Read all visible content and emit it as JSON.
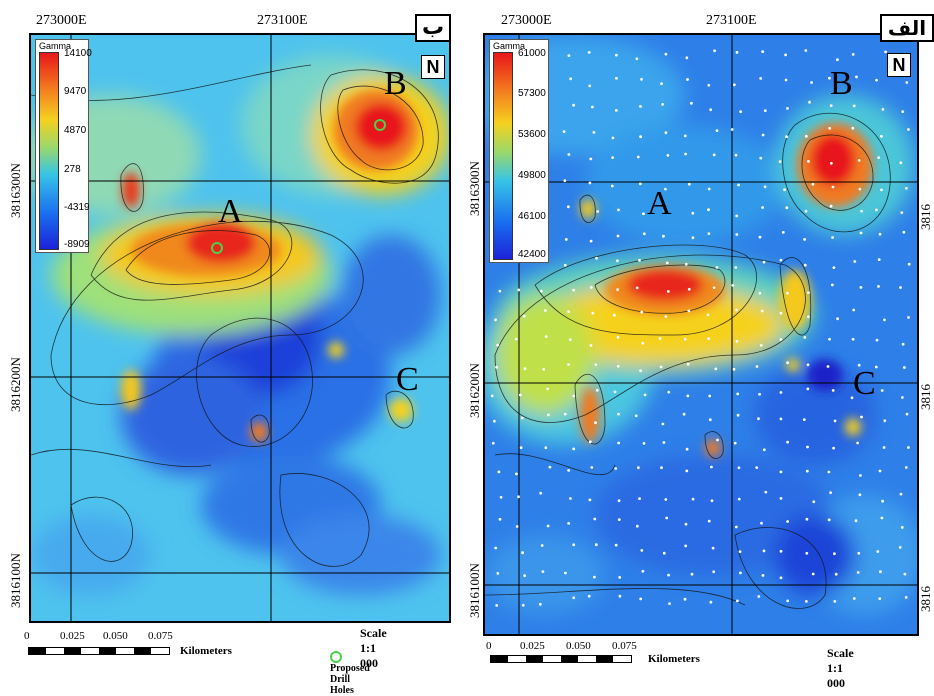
{
  "left": {
    "panel_letter": "ب",
    "top_coords": [
      "273000E",
      "273100E"
    ],
    "side_coords": [
      "3816300N",
      "3816200N",
      "3816100N"
    ],
    "legend": {
      "title": "Gamma",
      "ticks": [
        "14100",
        "9470",
        "4870",
        "278",
        "-4319",
        "-8909"
      ]
    },
    "zones": [
      "A",
      "B",
      "C"
    ],
    "scale_numbers": [
      "0",
      "0.025",
      "0.050",
      "0.075"
    ],
    "scale_unit": "Kilometers",
    "scale_text": "Scale 1:1 000",
    "drill_legend": "Proposed Drill Holes"
  },
  "right": {
    "panel_letter": "الف",
    "top_coords": [
      "273000E",
      "273100E"
    ],
    "side_coords": [
      "3816300N",
      "3816200N",
      "3816100N"
    ],
    "legend": {
      "title": "Gamma",
      "ticks": [
        "61000",
        "57300",
        "53600",
        "49800",
        "46100",
        "42400"
      ]
    },
    "zones": [
      "A",
      "B",
      "C"
    ],
    "scale_numbers": [
      "0",
      "0.025",
      "0.050",
      "0.075"
    ],
    "scale_unit": "Kilometers",
    "scale_text": "Scale 1:1 000"
  },
  "colors": {
    "high": "#e8161a",
    "mid": "#f5d11f",
    "low": "#1c22d8",
    "background": "#3cb8ec"
  }
}
